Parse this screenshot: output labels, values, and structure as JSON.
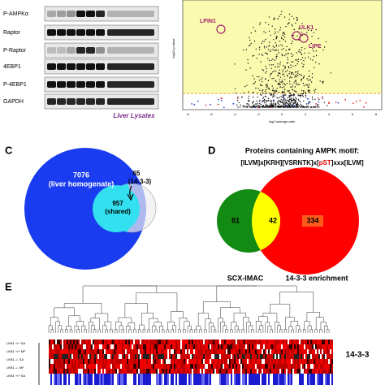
{
  "panel_a": {
    "blot_labels": [
      "P-AMPKα",
      "Raptor",
      "P-Raptor",
      "4EBP1",
      "P-4EBP1",
      "GAPDH"
    ],
    "caption": "Liver Lysates"
  },
  "panel_b": {
    "labels": [
      "LPIN1",
      "ULK1",
      "LIPE"
    ],
    "x_label": "log2 average ratio",
    "y_label": "-log10 p-value",
    "xticks": [
      "-8",
      "-6",
      "-4",
      "-2",
      "0",
      "2",
      "4",
      "6",
      "8"
    ]
  },
  "panel_c": {
    "letter": "C",
    "liver": {
      "count": "7076",
      "label": "(liver homogenate)"
    },
    "shared": {
      "count": "957",
      "label": "(shared)"
    },
    "other": {
      "count": "65",
      "label": "(14-3-3)"
    }
  },
  "panel_d": {
    "letter": "D",
    "title": "Proteins containing AMPK motif:",
    "motif": [
      "[ILVM]x[KRH][VSRNTK]x[",
      "pST",
      "]xxx[ILVM]"
    ],
    "left_count": "81",
    "overlap_count": "42",
    "right_count": "334",
    "left_label": "SCX-IMAC",
    "right_label": "14-3-3  enrichment"
  },
  "panel_e": {
    "letter": "E",
    "row_labels": [
      "LKB1 +/+ SA",
      "LKB1 +/+ MF",
      "LKB1 -/- SA",
      "LKB1 -/- MF",
      "LKB1 +/+ SA"
    ],
    "side_label": "14-3-3"
  }
}
